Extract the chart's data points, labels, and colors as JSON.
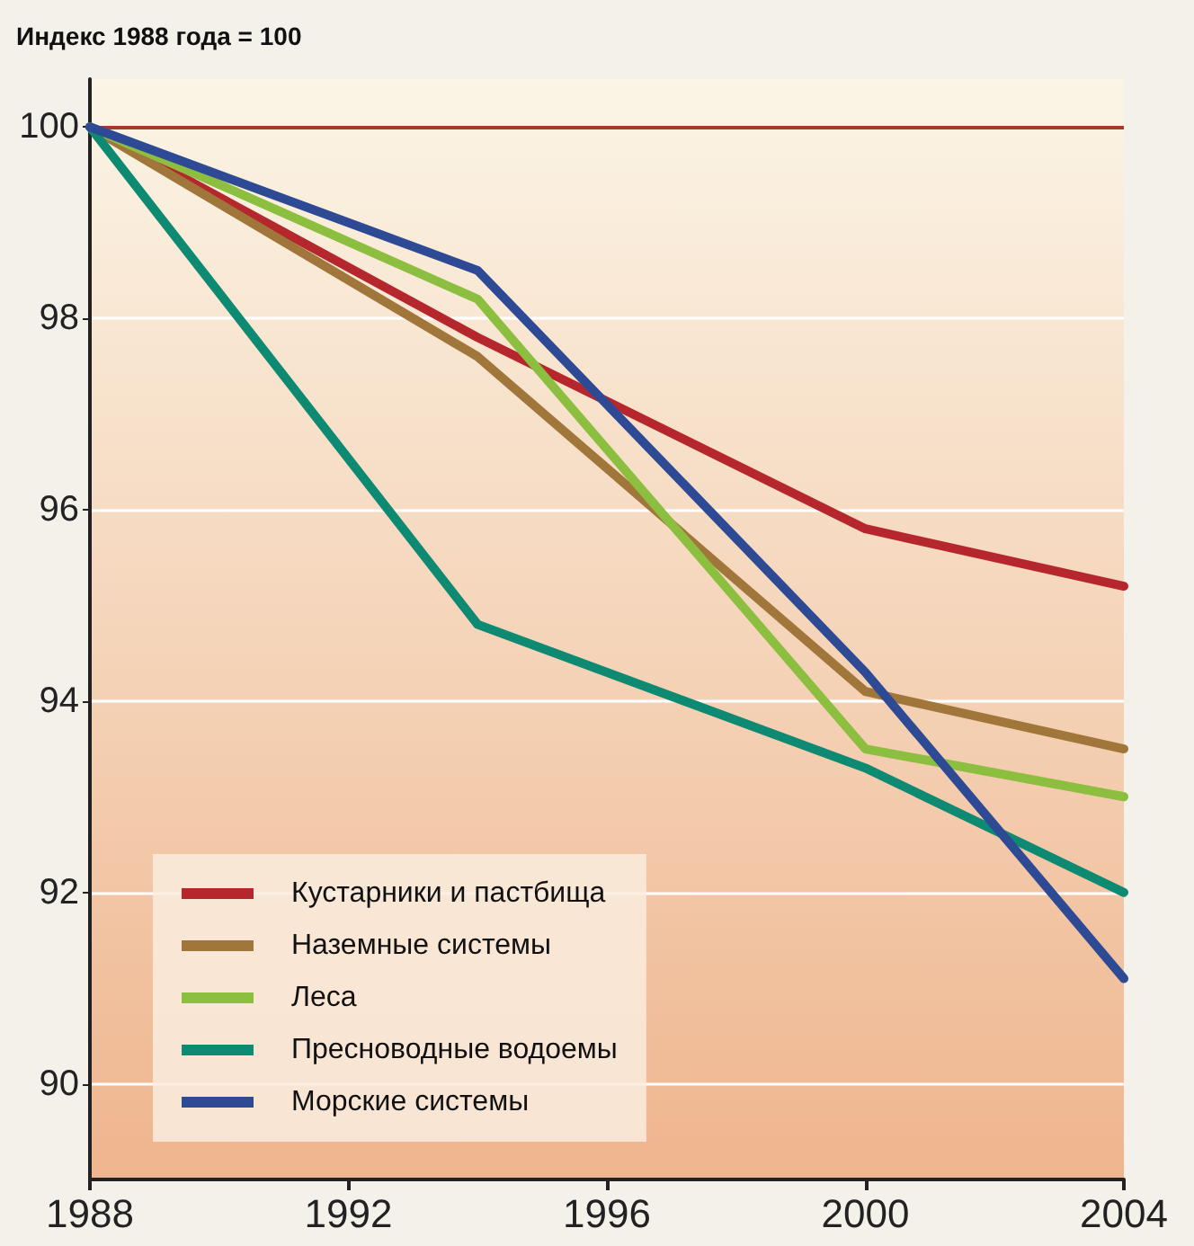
{
  "chart_data": {
    "type": "line",
    "ylabel": "Индекс 1988 года = 100",
    "x": [
      1988,
      1994,
      2000,
      2004
    ],
    "xlim": [
      1988,
      2004
    ],
    "xticks": [
      1988,
      1992,
      1996,
      2000,
      2004
    ],
    "ylim": [
      89,
      100.5
    ],
    "yticks": [
      90,
      92,
      94,
      96,
      98,
      100
    ],
    "series": [
      {
        "name": "Кустарники и пастбища",
        "color": "#b5272d",
        "values": [
          100,
          97.8,
          95.8,
          95.2
        ]
      },
      {
        "name": "Наземные системы",
        "color": "#a0763a",
        "values": [
          100,
          97.6,
          94.1,
          93.5
        ]
      },
      {
        "name": "Леса",
        "color": "#8cbf3f",
        "values": [
          100,
          98.2,
          93.5,
          93.0
        ]
      },
      {
        "name": "Пресноводные водоемы",
        "color": "#0f8a72",
        "values": [
          100,
          94.8,
          93.3,
          92.0
        ]
      },
      {
        "name": "Морские системы",
        "color": "#2e4a95",
        "values": [
          100,
          98.5,
          94.3,
          91.1
        ]
      }
    ],
    "ref_lines": [
      {
        "axis": "y",
        "value": 100,
        "color": "#a33a2a"
      }
    ],
    "grid": "y",
    "legend": "bottom left",
    "marker": "none",
    "line_style": "solid"
  }
}
